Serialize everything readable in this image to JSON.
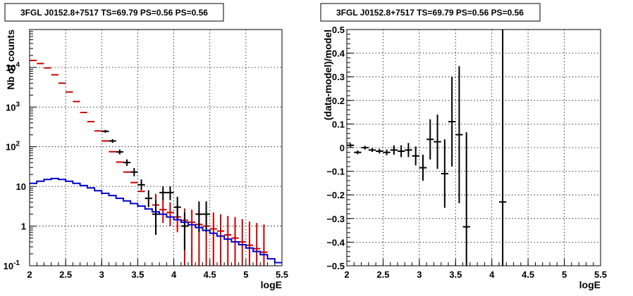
{
  "chart_data": [
    {
      "type": "line",
      "title": "3FGL J0152.8+7517 TS=69.79 PS=0.56 PS=0.56",
      "xlabel": "logE",
      "ylabel": "Nb of counts",
      "xlim": [
        2,
        5.5
      ],
      "ylim": [
        0.1,
        90000
      ],
      "yscale": "log",
      "grid": true,
      "x_ticks": [
        "2",
        "2.5",
        "3",
        "3.5",
        "4",
        "4.5",
        "5",
        "5.5"
      ],
      "y_ticks": [
        {
          "value": 0.1,
          "base": "10",
          "exp": "-1"
        },
        {
          "value": 1,
          "base": "1",
          "exp": ""
        },
        {
          "value": 10,
          "base": "10",
          "exp": ""
        },
        {
          "value": 100,
          "base": "10",
          "exp": "2"
        },
        {
          "value": 1000,
          "base": "10",
          "exp": "3"
        },
        {
          "value": 10000,
          "base": "10",
          "exp": "4"
        }
      ],
      "series": [
        {
          "color": "#cc0000",
          "style": "errorbar",
          "points": [
            {
              "x": 2.05,
              "y": 15000
            },
            {
              "x": 2.15,
              "y": 12500
            },
            {
              "x": 2.25,
              "y": 9700
            },
            {
              "x": 2.35,
              "y": 6500
            },
            {
              "x": 2.45,
              "y": 4000
            },
            {
              "x": 2.55,
              "y": 2400
            },
            {
              "x": 2.65,
              "y": 1380
            },
            {
              "x": 2.75,
              "y": 730
            },
            {
              "x": 2.85,
              "y": 430
            },
            {
              "x": 2.95,
              "y": 250
            },
            {
              "x": 3.05,
              "y": 140
            },
            {
              "x": 3.15,
              "y": 75
            },
            {
              "x": 3.25,
              "y": 41
            },
            {
              "x": 3.35,
              "y": 23
            },
            {
              "x": 3.45,
              "y": 12.5
            },
            {
              "x": 3.55,
              "y": 7.5
            },
            {
              "x": 3.65,
              "y": 5
            },
            {
              "x": 3.75,
              "y": 3.4,
              "lo": 1.6,
              "hi": 6.5
            },
            {
              "x": 3.85,
              "y": 2.6,
              "lo": 1.2,
              "hi": 4.8
            },
            {
              "x": 3.95,
              "y": 2.2,
              "lo": 1,
              "hi": 4
            },
            {
              "x": 4.05,
              "y": 1.7,
              "lo": 0.7,
              "hi": 3.4
            },
            {
              "x": 4.15,
              "y": 1.4,
              "lo": 0.1,
              "hi": 2.8
            },
            {
              "x": 4.25,
              "y": 1.25,
              "lo": 0.1,
              "hi": 2.6
            },
            {
              "x": 4.35,
              "y": 1.1,
              "lo": 0.1,
              "hi": 2.5
            },
            {
              "x": 4.45,
              "y": 1,
              "lo": 0.1,
              "hi": 2.3
            },
            {
              "x": 4.55,
              "y": 0.85,
              "lo": 0.1,
              "hi": 2.2
            },
            {
              "x": 4.65,
              "y": 0.75,
              "lo": 0.1,
              "hi": 2
            },
            {
              "x": 4.75,
              "y": 0.6,
              "lo": 0.1,
              "hi": 1.8
            },
            {
              "x": 4.85,
              "y": 0.5,
              "lo": 0.1,
              "hi": 1.7
            },
            {
              "x": 4.95,
              "y": 0.4,
              "lo": 0.1,
              "hi": 1.5
            },
            {
              "x": 5.05,
              "y": 0.33,
              "lo": 0.1,
              "hi": 1.3
            },
            {
              "x": 5.15,
              "y": 0.27,
              "lo": 0.1,
              "hi": 1.2
            },
            {
              "x": 5.25,
              "y": 0.22,
              "lo": 0.1,
              "hi": 1.1
            }
          ]
        },
        {
          "color": "#000000",
          "style": "errorbar",
          "points": [
            {
              "x": 3.05,
              "y": 245,
              "lo": 225,
              "hi": 265
            },
            {
              "x": 3.15,
              "y": 140,
              "lo": 125,
              "hi": 155
            },
            {
              "x": 3.25,
              "y": 74,
              "lo": 64,
              "hi": 85
            },
            {
              "x": 3.35,
              "y": 40,
              "lo": 33,
              "hi": 48
            },
            {
              "x": 3.45,
              "y": 23,
              "lo": 18,
              "hi": 29
            },
            {
              "x": 3.55,
              "y": 11,
              "lo": 8,
              "hi": 15
            },
            {
              "x": 3.65,
              "y": 5,
              "lo": 3,
              "hi": 8
            },
            {
              "x": 3.75,
              "y": 2,
              "lo": 0.6,
              "hi": 4.5
            },
            {
              "x": 3.85,
              "y": 7,
              "lo": 4.5,
              "hi": 10
            },
            {
              "x": 3.95,
              "y": 7,
              "lo": 4.5,
              "hi": 10
            },
            {
              "x": 4.05,
              "y": 3,
              "lo": 1.5,
              "hi": 5.5
            },
            {
              "x": 4.15,
              "y": 1,
              "lo": 0.25,
              "hi": 2.2
            },
            {
              "x": 4.35,
              "y": 2,
              "lo": 0.7,
              "hi": 4.2
            },
            {
              "x": 4.45,
              "y": 2,
              "lo": 0.7,
              "hi": 4.2
            }
          ]
        },
        {
          "color": "#0000cc",
          "style": "step",
          "points": [
            {
              "x": 2.05,
              "y": 12
            },
            {
              "x": 2.15,
              "y": 13.5
            },
            {
              "x": 2.25,
              "y": 15
            },
            {
              "x": 2.35,
              "y": 15.8
            },
            {
              "x": 2.45,
              "y": 15
            },
            {
              "x": 2.55,
              "y": 13.5
            },
            {
              "x": 2.65,
              "y": 12
            },
            {
              "x": 2.75,
              "y": 10.5
            },
            {
              "x": 2.85,
              "y": 9.2
            },
            {
              "x": 2.95,
              "y": 7.8
            },
            {
              "x": 3.05,
              "y": 6.7
            },
            {
              "x": 3.15,
              "y": 5.9
            },
            {
              "x": 3.25,
              "y": 5
            },
            {
              "x": 3.35,
              "y": 4.3
            },
            {
              "x": 3.45,
              "y": 3.7
            },
            {
              "x": 3.55,
              "y": 3.2
            },
            {
              "x": 3.65,
              "y": 2.7
            },
            {
              "x": 3.75,
              "y": 2.3
            },
            {
              "x": 3.85,
              "y": 2
            },
            {
              "x": 3.95,
              "y": 1.7
            },
            {
              "x": 4.05,
              "y": 1.45
            },
            {
              "x": 4.15,
              "y": 1.25
            },
            {
              "x": 4.25,
              "y": 1.08
            },
            {
              "x": 4.35,
              "y": 0.92
            },
            {
              "x": 4.45,
              "y": 0.78
            },
            {
              "x": 4.55,
              "y": 0.66
            },
            {
              "x": 4.65,
              "y": 0.56
            },
            {
              "x": 4.75,
              "y": 0.47
            },
            {
              "x": 4.85,
              "y": 0.4
            },
            {
              "x": 4.95,
              "y": 0.34
            },
            {
              "x": 5.05,
              "y": 0.28
            },
            {
              "x": 5.15,
              "y": 0.23
            },
            {
              "x": 5.25,
              "y": 0.19
            },
            {
              "x": 5.35,
              "y": 0.15
            },
            {
              "x": 5.45,
              "y": 0.12
            }
          ]
        }
      ]
    },
    {
      "type": "scatter",
      "title": "3FGL J0152.8+7517 TS=69.79 PS=0.56 PS=0.56",
      "xlabel": "logE",
      "ylabel": "(data-model)/model",
      "xlim": [
        2,
        5.5
      ],
      "ylim": [
        -0.5,
        0.5
      ],
      "yscale": "linear",
      "grid": true,
      "x_ticks": [
        "2",
        "2.5",
        "3",
        "3.5",
        "4",
        "4.5",
        "5",
        "5.5"
      ],
      "y_ticks": [
        "−0.5",
        "−0.4",
        "−0.3",
        "−0.2",
        "−0.1",
        "0",
        "0.1",
        "0.2",
        "0.3",
        "0.4",
        "0.5"
      ],
      "series": [
        {
          "color": "#000000",
          "style": "errorbar",
          "points": [
            {
              "x": 2.05,
              "y": 0.01,
              "err": 0.008
            },
            {
              "x": 2.15,
              "y": -0.02,
              "err": 0.008
            },
            {
              "x": 2.25,
              "y": 0.0,
              "err": 0.008
            },
            {
              "x": 2.35,
              "y": -0.01,
              "err": 0.008
            },
            {
              "x": 2.45,
              "y": -0.015,
              "err": 0.01
            },
            {
              "x": 2.55,
              "y": -0.02,
              "err": 0.012
            },
            {
              "x": 2.65,
              "y": -0.01,
              "err": 0.02
            },
            {
              "x": 2.75,
              "y": -0.015,
              "err": 0.025
            },
            {
              "x": 2.85,
              "y": -0.01,
              "err": 0.03
            },
            {
              "x": 2.95,
              "y": -0.035,
              "err": 0.04
            },
            {
              "x": 3.05,
              "y": -0.085,
              "err": 0.055
            },
            {
              "x": 3.15,
              "y": 0.035,
              "err": 0.085
            },
            {
              "x": 3.25,
              "y": 0.025,
              "err": 0.115
            },
            {
              "x": 3.35,
              "y": -0.11,
              "err": 0.145
            },
            {
              "x": 3.45,
              "y": 0.11,
              "err": 0.19
            },
            {
              "x": 3.55,
              "y": 0.055,
              "err": 0.29
            },
            {
              "x": 3.65,
              "y": -0.335,
              "err": 0.4
            },
            {
              "x": 4.15,
              "y": -0.23,
              "err": 0.9
            }
          ]
        }
      ]
    }
  ]
}
